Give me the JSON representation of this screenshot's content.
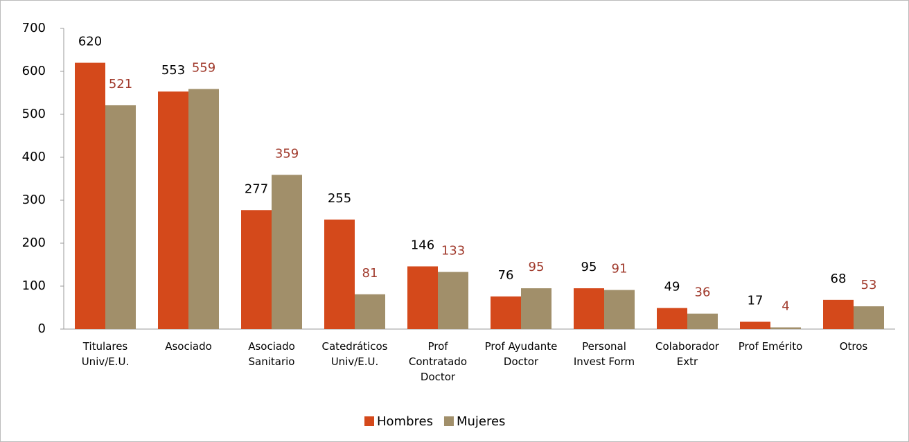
{
  "chart_data": {
    "type": "bar",
    "categories": [
      "Titulares Univ/E.U.",
      "Asociado",
      "Asociado Sanitario",
      "Catedráticos Univ/E.U.",
      "Prof Contratado Doctor",
      "Prof Ayudante Doctor",
      "Personal Invest Form",
      "Colaborador Extr",
      "Prof Emérito",
      "Otros"
    ],
    "series": [
      {
        "name": "Hombres",
        "color": "#d4491b",
        "label_color": "#000000",
        "values": [
          620,
          553,
          277,
          255,
          146,
          76,
          95,
          49,
          17,
          68
        ]
      },
      {
        "name": "Mujeres",
        "color": "#a18f6a",
        "label_color": "#a0392b",
        "values": [
          521,
          559,
          359,
          81,
          133,
          95,
          91,
          36,
          4,
          53
        ]
      }
    ],
    "ylim": [
      0,
      700
    ],
    "yticks": [
      0,
      100,
      200,
      300,
      400,
      500,
      600,
      700
    ],
    "legend": "bottom"
  }
}
